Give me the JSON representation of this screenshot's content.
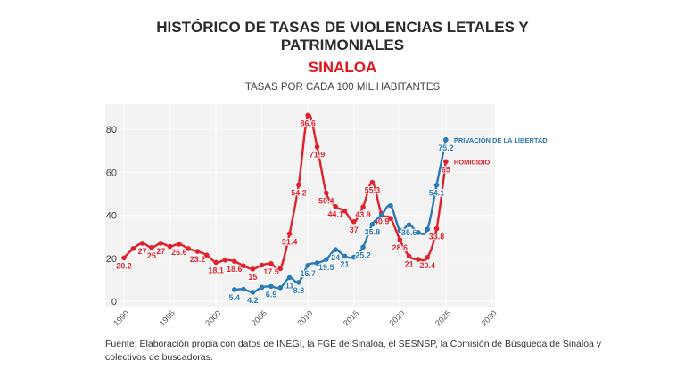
{
  "chart_data": {
    "type": "line",
    "title_lines": [
      "HISTÓRICO DE TASAS DE VIOLENCIAS LETALES Y",
      "PATRIMONIALES"
    ],
    "region": "SINALOA",
    "subtitle": "TASAS POR CADA 100 MIL HABITANTES",
    "xlim": [
      1990,
      2030
    ],
    "ylim": [
      0,
      90
    ],
    "xticks": [
      "1990",
      "1995",
      "2000",
      "2005",
      "2010",
      "2015",
      "2020",
      "2025",
      "2030"
    ],
    "yticks": [
      "0",
      "20",
      "40",
      "60",
      "80"
    ],
    "grid": true,
    "legend_placement": "line-end labels",
    "series": [
      {
        "name": "HOMICIDIO",
        "color": "#e0212b",
        "x": [
          1990,
          1991,
          1992,
          1993,
          1994,
          1995,
          1996,
          1997,
          1998,
          1999,
          2000,
          2001,
          2002,
          2003,
          2004,
          2005,
          2006,
          2007,
          2008,
          2009,
          2010,
          2011,
          2012,
          2013,
          2014,
          2015,
          2016,
          2017,
          2018,
          2019,
          2020,
          2021,
          2022,
          2023,
          2024,
          2025
        ],
        "values": [
          20.2,
          24.5,
          27,
          25,
          27,
          25.5,
          26.6,
          24.5,
          23.2,
          21.5,
          18.1,
          19.2,
          18.6,
          16.5,
          15,
          16.8,
          17.5,
          15.2,
          31.4,
          54.2,
          86.6,
          71.9,
          50.4,
          44.1,
          42,
          37,
          43.9,
          55.3,
          40.9,
          38.5,
          28.6,
          21,
          19.5,
          20.4,
          33.8,
          65
        ],
        "labels": [
          "20.2",
          null,
          "27",
          "25",
          "27",
          null,
          "26.6",
          null,
          "23.2",
          null,
          "18.1",
          null,
          "18.6",
          null,
          "15",
          null,
          "17.5",
          null,
          "31.4",
          "54.2",
          "86.6",
          "71.9",
          "50.4",
          "44.1",
          null,
          "37",
          "43.9",
          "55.3",
          "40.9",
          null,
          "28.6",
          "21",
          null,
          "20.4",
          "33.8",
          "65"
        ]
      },
      {
        "name": "PRIVACIÓN DE LA LIBERTAD",
        "color": "#2a7ab8",
        "x": [
          2002,
          2003,
          2004,
          2005,
          2006,
          2007,
          2008,
          2009,
          2010,
          2011,
          2012,
          2013,
          2014,
          2015,
          2016,
          2017,
          2018,
          2019,
          2020,
          2021,
          2022,
          2023,
          2024,
          2025
        ],
        "values": [
          5.4,
          5.6,
          4.2,
          6.5,
          6.9,
          6.3,
          11,
          8.8,
          16.7,
          17.8,
          19.5,
          24,
          21,
          20.5,
          25.2,
          35.8,
          40,
          44.5,
          33,
          35.6,
          32,
          33.5,
          54.1,
          75.2
        ],
        "labels": [
          "5.4",
          null,
          "4.2",
          null,
          "6.9",
          null,
          "11",
          "8.8",
          "16.7",
          null,
          "19.5",
          "24",
          "21",
          null,
          "25.2",
          "35.8",
          null,
          null,
          null,
          "35.6",
          null,
          null,
          "54.1",
          "75.2"
        ]
      }
    ]
  },
  "footer": {
    "line1": "Fuente: Elaboración propia con datos de INEGI, la FGE de Sinaloa, el SESNSP, la Comisión de Búsqueda de Sinaloa y",
    "line2": "colectivos de buscadoras."
  }
}
